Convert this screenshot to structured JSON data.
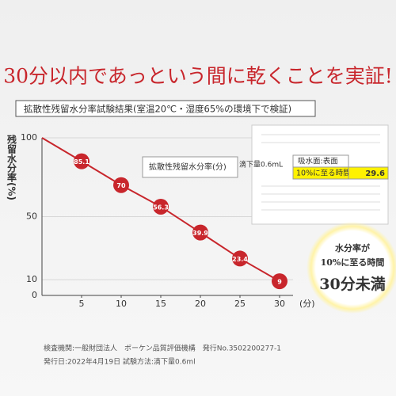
{
  "chart_data": {
    "type": "line",
    "title": "30分以内であっという間に乾くことを実証!",
    "subtitle": "拡散性残留水分率試験結果(室温20℃・湿度65%の環境下で検証)",
    "y_label": "残留水分率(%)",
    "x_label": "(分)",
    "x": [
      0,
      5,
      10,
      15,
      20,
      25,
      30
    ],
    "values": [
      100,
      85.1,
      70,
      56.3,
      39.9,
      23.4,
      9
    ],
    "color": "#c8262c",
    "xlim": [
      0,
      30
    ],
    "xticks": [
      5,
      10,
      15,
      20,
      25,
      30
    ],
    "ylim": [
      0,
      100
    ],
    "yticks": [
      0,
      10,
      50,
      100
    ],
    "grid": true,
    "annotations": {
      "inset_title": "拡散性残留水分率(分)",
      "inset_drop": "滴下量0.6mL",
      "inset_surface": "吸水面:表面",
      "inset_time_label": "10%に至る時間",
      "inset_time_value": "29.6",
      "badge_line1": "水分率が",
      "badge_line2": "10%に至る時間",
      "badge_line3": "30分未満"
    },
    "footer": [
      "検査機関:一般財団法人　ボーケン品質評価機構　発行No.3502200277-1",
      "発行日:2022年4月19日 試験方法:滴下量0.6ml"
    ]
  }
}
